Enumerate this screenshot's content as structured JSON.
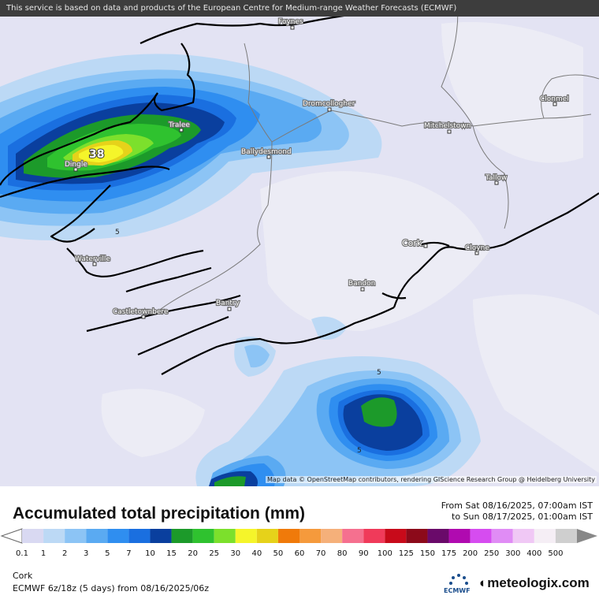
{
  "notice": "This service is based on data and products of the European Centre for Medium-range Weather Forecasts (ECMWF)",
  "attribution": "Map data © OpenStreetMap contributors, rendering GIScience Research Group @ Heidelberg University",
  "max_label": "38",
  "contour_labels": [
    "5",
    "5",
    "5"
  ],
  "places": [
    {
      "name": "Foynes"
    },
    {
      "name": "Dromcollogher"
    },
    {
      "name": "Clonmel"
    },
    {
      "name": "Tralee"
    },
    {
      "name": "Mitchelstown"
    },
    {
      "name": "Ballydesmond"
    },
    {
      "name": "Dingle"
    },
    {
      "name": "Tallow"
    },
    {
      "name": "Cork"
    },
    {
      "name": "Cloyne"
    },
    {
      "name": "Waterville"
    },
    {
      "name": "Bandon"
    },
    {
      "name": "Bantry"
    },
    {
      "name": "Castletownbere"
    }
  ],
  "legend": {
    "title": "Accumulated total precipitation (mm)",
    "from": "From Sat 08/16/2025, 07:00am IST",
    "to": "to Sun 08/17/2025, 01:00am IST",
    "location": "Cork",
    "model": "ECMWF 6z/18z (5 days) from 08/16/2025/06z",
    "brand": "meteologix.com",
    "ecmwf_logo_text": "ECMWF",
    "ticks": [
      "0.1",
      "1",
      "2",
      "3",
      "5",
      "7",
      "10",
      "15",
      "20",
      "25",
      "30",
      "40",
      "50",
      "60",
      "70",
      "80",
      "90",
      "100",
      "125",
      "150",
      "175",
      "200",
      "250",
      "300",
      "400",
      "500"
    ],
    "colors": [
      "#d9d9f2",
      "#bcd9f5",
      "#8cc4f5",
      "#5aaaf2",
      "#2f8ef0",
      "#1a6fe0",
      "#0a3f9e",
      "#1c9a2a",
      "#2fc22f",
      "#7ce02c",
      "#f5f52a",
      "#e6d21a",
      "#f07a0a",
      "#f59a3c",
      "#f5b07a",
      "#f5708f",
      "#f03a5a",
      "#c80a1a",
      "#8c0a1a",
      "#6a0a6a",
      "#b00ab0",
      "#d64cf0",
      "#e08cf5",
      "#f0c8f5",
      "#f5eef5",
      "#cfcfcf"
    ]
  }
}
